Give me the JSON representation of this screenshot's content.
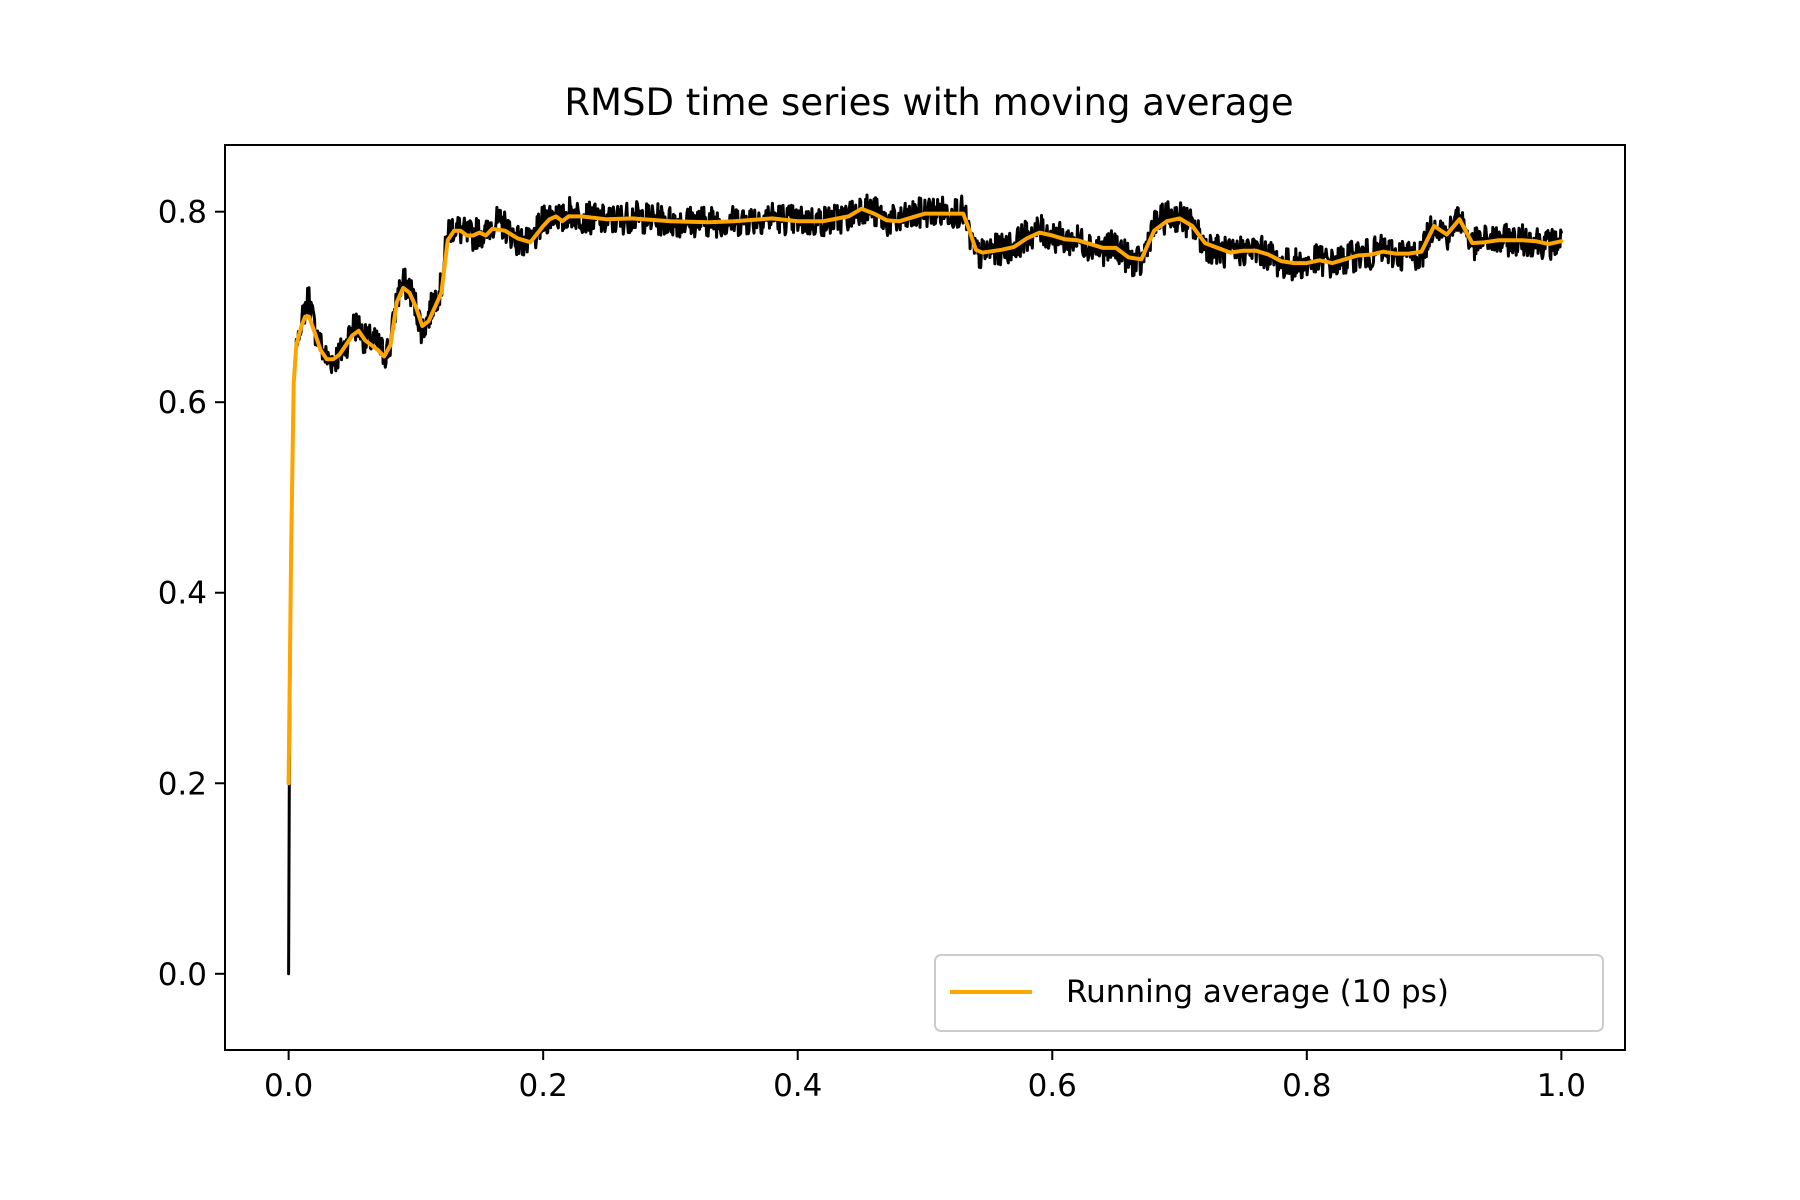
{
  "chart_data": {
    "type": "line",
    "title": "RMSD time series with moving average",
    "xlabel": "",
    "ylabel": "",
    "xlim": [
      -0.05,
      1.05
    ],
    "ylim": [
      -0.08,
      0.87
    ],
    "xticks": [
      "0.0",
      "0.2",
      "0.4",
      "0.6",
      "0.8",
      "1.0"
    ],
    "yticks": [
      "0.0",
      "0.2",
      "0.4",
      "0.6",
      "0.8"
    ],
    "grid": false,
    "legend": {
      "position": "lower-right",
      "entries": [
        "Running average (10 ps)"
      ]
    },
    "series": [
      {
        "color": "#000000",
        "noise": 0.012,
        "x": [
          0.0,
          0.0005,
          0.002,
          0.004,
          0.006,
          0.008,
          0.01,
          0.013,
          0.016,
          0.02,
          0.025,
          0.03,
          0.035,
          0.04,
          0.045,
          0.05,
          0.055,
          0.06,
          0.065,
          0.07,
          0.075,
          0.08,
          0.085,
          0.09,
          0.095,
          0.1,
          0.105,
          0.11,
          0.115,
          0.12,
          0.125,
          0.13,
          0.135,
          0.14,
          0.145,
          0.15,
          0.155,
          0.16,
          0.17,
          0.18,
          0.19,
          0.2,
          0.205,
          0.21,
          0.215,
          0.22,
          0.23,
          0.25,
          0.27,
          0.3,
          0.33,
          0.35,
          0.38,
          0.4,
          0.42,
          0.44,
          0.45,
          0.46,
          0.47,
          0.48,
          0.5,
          0.52,
          0.53,
          0.535,
          0.54,
          0.545,
          0.55,
          0.56,
          0.57,
          0.58,
          0.59,
          0.6,
          0.61,
          0.62,
          0.63,
          0.64,
          0.65,
          0.66,
          0.67,
          0.675,
          0.68,
          0.69,
          0.7,
          0.71,
          0.72,
          0.73,
          0.74,
          0.75,
          0.76,
          0.77,
          0.78,
          0.79,
          0.8,
          0.81,
          0.82,
          0.83,
          0.84,
          0.85,
          0.86,
          0.87,
          0.88,
          0.89,
          0.9,
          0.91,
          0.92,
          0.93,
          0.94,
          0.95,
          0.96,
          0.97,
          0.98,
          0.99,
          1.0
        ],
        "y": [
          0.0,
          0.2,
          0.45,
          0.62,
          0.66,
          0.67,
          0.68,
          0.7,
          0.71,
          0.68,
          0.66,
          0.645,
          0.645,
          0.65,
          0.66,
          0.68,
          0.68,
          0.665,
          0.665,
          0.66,
          0.65,
          0.66,
          0.71,
          0.725,
          0.72,
          0.7,
          0.675,
          0.69,
          0.71,
          0.72,
          0.78,
          0.785,
          0.78,
          0.775,
          0.775,
          0.78,
          0.775,
          0.79,
          0.785,
          0.77,
          0.765,
          0.79,
          0.795,
          0.8,
          0.79,
          0.8,
          0.795,
          0.79,
          0.795,
          0.79,
          0.79,
          0.79,
          0.795,
          0.79,
          0.79,
          0.795,
          0.805,
          0.8,
          0.79,
          0.79,
          0.8,
          0.8,
          0.8,
          0.775,
          0.755,
          0.755,
          0.76,
          0.76,
          0.765,
          0.775,
          0.78,
          0.775,
          0.77,
          0.77,
          0.765,
          0.76,
          0.765,
          0.75,
          0.745,
          0.77,
          0.785,
          0.795,
          0.795,
          0.785,
          0.765,
          0.76,
          0.755,
          0.76,
          0.76,
          0.755,
          0.745,
          0.745,
          0.745,
          0.75,
          0.745,
          0.75,
          0.755,
          0.755,
          0.76,
          0.755,
          0.755,
          0.755,
          0.79,
          0.775,
          0.795,
          0.765,
          0.77,
          0.77,
          0.77,
          0.77,
          0.77,
          0.765,
          0.77
        ]
      },
      {
        "name": "Running average (10 ps)",
        "color": "#FFA500",
        "x": [
          0.0,
          0.002,
          0.004,
          0.006,
          0.008,
          0.01,
          0.013,
          0.016,
          0.02,
          0.025,
          0.03,
          0.035,
          0.04,
          0.045,
          0.05,
          0.055,
          0.06,
          0.065,
          0.07,
          0.075,
          0.08,
          0.085,
          0.09,
          0.095,
          0.1,
          0.105,
          0.11,
          0.115,
          0.12,
          0.125,
          0.13,
          0.135,
          0.14,
          0.145,
          0.15,
          0.155,
          0.16,
          0.17,
          0.18,
          0.19,
          0.2,
          0.205,
          0.21,
          0.215,
          0.22,
          0.23,
          0.25,
          0.27,
          0.3,
          0.33,
          0.35,
          0.38,
          0.4,
          0.42,
          0.44,
          0.45,
          0.46,
          0.47,
          0.48,
          0.5,
          0.52,
          0.53,
          0.535,
          0.54,
          0.545,
          0.55,
          0.56,
          0.57,
          0.58,
          0.59,
          0.6,
          0.61,
          0.62,
          0.63,
          0.64,
          0.65,
          0.66,
          0.67,
          0.675,
          0.68,
          0.69,
          0.7,
          0.71,
          0.72,
          0.73,
          0.74,
          0.75,
          0.76,
          0.77,
          0.78,
          0.79,
          0.8,
          0.81,
          0.82,
          0.83,
          0.84,
          0.85,
          0.86,
          0.87,
          0.88,
          0.89,
          0.9,
          0.91,
          0.92,
          0.93,
          0.94,
          0.95,
          0.96,
          0.97,
          0.98,
          0.99,
          1.0
        ],
        "y": [
          0.2,
          0.45,
          0.62,
          0.66,
          0.67,
          0.68,
          0.69,
          0.69,
          0.675,
          0.655,
          0.645,
          0.645,
          0.65,
          0.66,
          0.67,
          0.675,
          0.665,
          0.66,
          0.655,
          0.648,
          0.66,
          0.705,
          0.72,
          0.715,
          0.7,
          0.68,
          0.685,
          0.7,
          0.715,
          0.77,
          0.78,
          0.78,
          0.775,
          0.775,
          0.778,
          0.775,
          0.782,
          0.78,
          0.772,
          0.768,
          0.785,
          0.792,
          0.795,
          0.79,
          0.795,
          0.795,
          0.792,
          0.793,
          0.79,
          0.789,
          0.79,
          0.793,
          0.79,
          0.79,
          0.795,
          0.803,
          0.798,
          0.791,
          0.79,
          0.798,
          0.798,
          0.798,
          0.78,
          0.76,
          0.757,
          0.758,
          0.76,
          0.763,
          0.772,
          0.778,
          0.775,
          0.771,
          0.77,
          0.766,
          0.762,
          0.762,
          0.752,
          0.75,
          0.765,
          0.78,
          0.79,
          0.793,
          0.785,
          0.767,
          0.762,
          0.757,
          0.759,
          0.759,
          0.755,
          0.748,
          0.746,
          0.746,
          0.749,
          0.746,
          0.75,
          0.754,
          0.755,
          0.758,
          0.756,
          0.756,
          0.758,
          0.785,
          0.776,
          0.792,
          0.767,
          0.768,
          0.77,
          0.77,
          0.77,
          0.769,
          0.766,
          0.769
        ]
      }
    ]
  }
}
